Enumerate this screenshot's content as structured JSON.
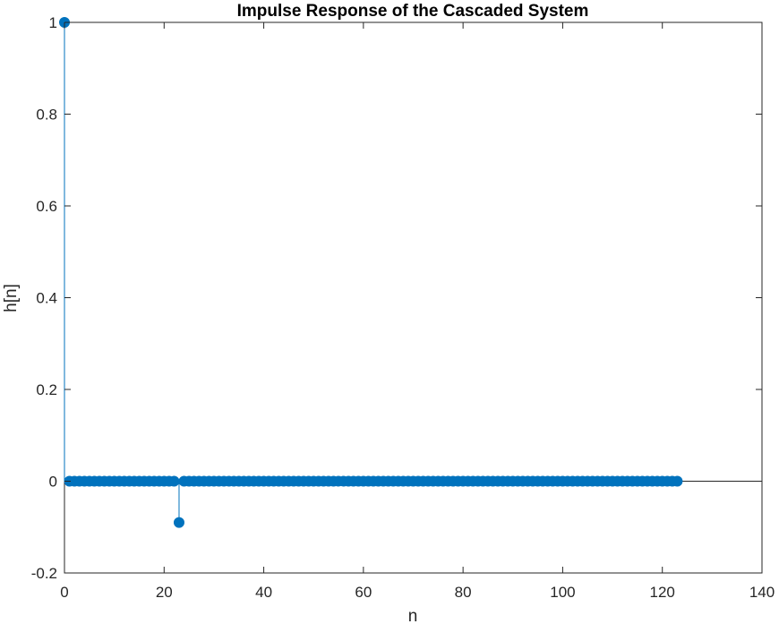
{
  "chart_data": {
    "type": "stem",
    "title": "Impulse Response of the Cascaded System",
    "xlabel": "n",
    "ylabel": "h[n]",
    "xlim": [
      0,
      140
    ],
    "ylim": [
      -0.2,
      1
    ],
    "xticks": [
      "0",
      "20",
      "40",
      "60",
      "80",
      "100",
      "120",
      "140"
    ],
    "yticks": [
      "-0.2",
      "0",
      "0.2",
      "0.4",
      "0.6",
      "0.8",
      "1"
    ],
    "x_range": [
      0,
      123
    ],
    "baseline": 0,
    "impulses": [
      {
        "n": 0,
        "value": 1
      },
      {
        "n": 23,
        "value": -0.09
      }
    ],
    "default_value": 0,
    "grid": false,
    "color": "#0072BD"
  }
}
